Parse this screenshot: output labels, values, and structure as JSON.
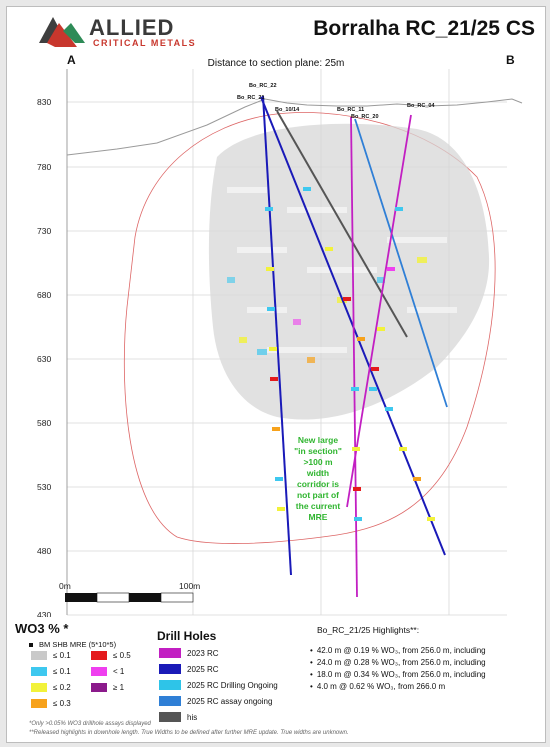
{
  "header": {
    "logo_main": "ALLIED",
    "logo_sub": "CRITICAL METALS",
    "title": "Borralha RC_21/25 CS",
    "distance_label": "Distance to section plane: 25m",
    "section_start": "A",
    "section_end": "B"
  },
  "elevation_axis": {
    "ticks": [
      "830",
      "780",
      "730",
      "680",
      "630",
      "580",
      "530",
      "480",
      "430"
    ]
  },
  "scale_bar": {
    "start_label": "0m",
    "end_label": "100m"
  },
  "drill_hole_labels": [
    "Bo_RC_22",
    "Bo_RC_21",
    "Bo_10/14",
    "Bo_RC_11",
    "Bo_RC_20",
    "Bo_RC_04"
  ],
  "callout": {
    "lines": [
      "New large",
      "\"in section\"",
      ">100 m",
      "width",
      "corridor is",
      "not part of",
      "the current",
      "MRE"
    ]
  },
  "legend": {
    "title": "WO3 % *",
    "mre_label": "BM SHB MRE (5*10*5)",
    "grades": [
      {
        "label": "≤ 0.1",
        "color": "#c9c9c9"
      },
      {
        "label": "≤ 0.5",
        "color": "#e41a1c"
      },
      {
        "label": "≤ 0.1",
        "color": "#3ec8ef"
      },
      {
        "label": "< 1",
        "color": "#ef3fef"
      },
      {
        "label": "≤ 0.2",
        "color": "#f2f23a"
      },
      {
        "label": "≥ 1",
        "color": "#8b1a8b"
      },
      {
        "label": "≤ 0.3",
        "color": "#f7a21b"
      }
    ]
  },
  "drill_holes_legend": {
    "title": "Drill Holes",
    "items": [
      {
        "label": "2023 RC",
        "color": "#c21fc2"
      },
      {
        "label": "2025 RC",
        "color": "#1a1ab8"
      },
      {
        "label": "2025 RC Drilling Ongoing",
        "color": "#2ec4e8"
      },
      {
        "label": "2025 RC assay ongoing",
        "color": "#2f7fd6"
      },
      {
        "label": "his",
        "color": "#555555"
      }
    ]
  },
  "highlights": {
    "title": "Bo_RC_21/25 Highlights**:",
    "items": [
      "42.0 m @ 0.19 % WO₃, from 256.0 m, including",
      "24.0 m @ 0.28 % WO₃, from 256.0 m, including",
      "18.0 m @ 0.34 % WO₃, from 256.0 m, including",
      "4.0 m @ 0.62 % WO₃, from 266.0 m"
    ]
  },
  "footnotes": {
    "line1": "*Only >0.05% WO3 drillhole assays displayed",
    "line2": "**Released highlights in downhole length. True Widths to be defined after further MRE update. True widths are unknown."
  }
}
